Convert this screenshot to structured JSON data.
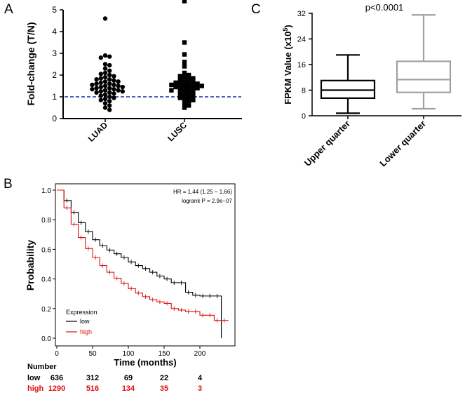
{
  "chart_data": [
    {
      "panel": "A",
      "type": "scatter",
      "title": "",
      "ylabel": "Fold-change (T/N)",
      "ylim": [
        0,
        5
      ],
      "yticks": [
        "0",
        "1",
        "2",
        "3",
        "4",
        "5"
      ],
      "categories": [
        "LUAD",
        "LUSC"
      ],
      "reference_line": 1,
      "series": [
        {
          "name": "LUAD",
          "marker": "circle",
          "values": [
            4.6,
            2.9,
            2.85,
            2.8,
            2.5,
            2.45,
            2.3,
            2.2,
            2.1,
            2.05,
            2.0,
            1.95,
            1.9,
            1.85,
            1.8,
            1.8,
            1.75,
            1.7,
            1.7,
            1.65,
            1.6,
            1.6,
            1.55,
            1.55,
            1.5,
            1.5,
            1.45,
            1.45,
            1.4,
            1.4,
            1.35,
            1.35,
            1.3,
            1.3,
            1.25,
            1.25,
            1.2,
            1.2,
            1.15,
            1.1,
            1.05,
            1.0,
            0.95,
            0.9,
            0.85,
            0.8,
            0.7,
            0.6,
            0.5,
            0.4
          ]
        },
        {
          "name": "LUSC",
          "marker": "square",
          "values": [
            5.4,
            3.5,
            2.95,
            2.6,
            2.4,
            2.1,
            2.0,
            1.95,
            1.9,
            1.85,
            1.8,
            1.75,
            1.7,
            1.65,
            1.65,
            1.6,
            1.6,
            1.55,
            1.55,
            1.5,
            1.5,
            1.45,
            1.45,
            1.4,
            1.4,
            1.35,
            1.3,
            1.3,
            1.25,
            1.2,
            1.15,
            1.1,
            1.05,
            1.0,
            0.95,
            0.9,
            0.85,
            0.8,
            0.7,
            0.6,
            0.5
          ]
        }
      ]
    },
    {
      "panel": "B",
      "type": "line",
      "title": "",
      "xlabel": "Time (months)",
      "ylabel": "Probability",
      "xlim": [
        0,
        240
      ],
      "ylim": [
        0,
        1
      ],
      "xticks": [
        "0",
        "50",
        "100",
        "150",
        "200"
      ],
      "yticks": [
        "0.0",
        "0.2",
        "0.4",
        "0.6",
        "0.8",
        "1.0"
      ],
      "annotation_hr": "HR = 1.44 (1.25 − 1.66)",
      "annotation_logrank": "logrank P = 2.9e−07",
      "legend_title": "Expression",
      "series": [
        {
          "name": "low",
          "color": "#000000",
          "x": [
            0,
            10,
            20,
            30,
            40,
            50,
            60,
            70,
            80,
            90,
            100,
            110,
            120,
            130,
            140,
            150,
            160,
            170,
            180,
            190,
            200,
            210,
            220,
            230
          ],
          "y": [
            1.0,
            0.93,
            0.85,
            0.78,
            0.72,
            0.665,
            0.625,
            0.595,
            0.57,
            0.545,
            0.515,
            0.49,
            0.47,
            0.445,
            0.42,
            0.4,
            0.375,
            0.375,
            0.31,
            0.29,
            0.285,
            0.285,
            0.285,
            0.0
          ]
        },
        {
          "name": "high",
          "color": "#dd1111",
          "x": [
            0,
            10,
            20,
            30,
            40,
            50,
            60,
            70,
            80,
            90,
            100,
            110,
            120,
            130,
            140,
            150,
            160,
            170,
            180,
            190,
            200,
            210,
            220,
            230,
            240
          ],
          "y": [
            1.0,
            0.88,
            0.77,
            0.68,
            0.605,
            0.545,
            0.49,
            0.445,
            0.405,
            0.37,
            0.335,
            0.305,
            0.28,
            0.26,
            0.245,
            0.235,
            0.2,
            0.19,
            0.18,
            0.18,
            0.155,
            0.155,
            0.12,
            0.12,
            0.12
          ]
        }
      ],
      "number_at_risk": {
        "header": "Number",
        "rows": [
          {
            "label": "low",
            "color": "#000000",
            "values": [
              "636",
              "312",
              "69",
              "22",
              "4"
            ]
          },
          {
            "label": "high",
            "color": "#dd1111",
            "values": [
              "1290",
              "516",
              "134",
              "35",
              "3"
            ]
          }
        ]
      }
    },
    {
      "panel": "C",
      "type": "box",
      "title": "p<0.0001",
      "ylabel_prefix": "FPKM Value (x10",
      "ylabel_exp": "5",
      "ylabel_suffix": ")",
      "ylim": [
        0,
        32
      ],
      "yticks": [
        "0",
        "8",
        "16",
        "24",
        "32"
      ],
      "categories": [
        "Upper quarter",
        "Lower quarter"
      ],
      "boxes": [
        {
          "name": "Upper quarter",
          "color": "#000000",
          "min": 0.8,
          "q1": 5.5,
          "median": 8.0,
          "q3": 11.0,
          "max": 19.0
        },
        {
          "name": "Lower quarter",
          "color": "#a0a0a0",
          "min": 2.2,
          "q1": 7.3,
          "median": 11.3,
          "q3": 17.0,
          "max": 31.5
        }
      ]
    }
  ],
  "panel_letters": [
    "A",
    "B",
    "C"
  ]
}
